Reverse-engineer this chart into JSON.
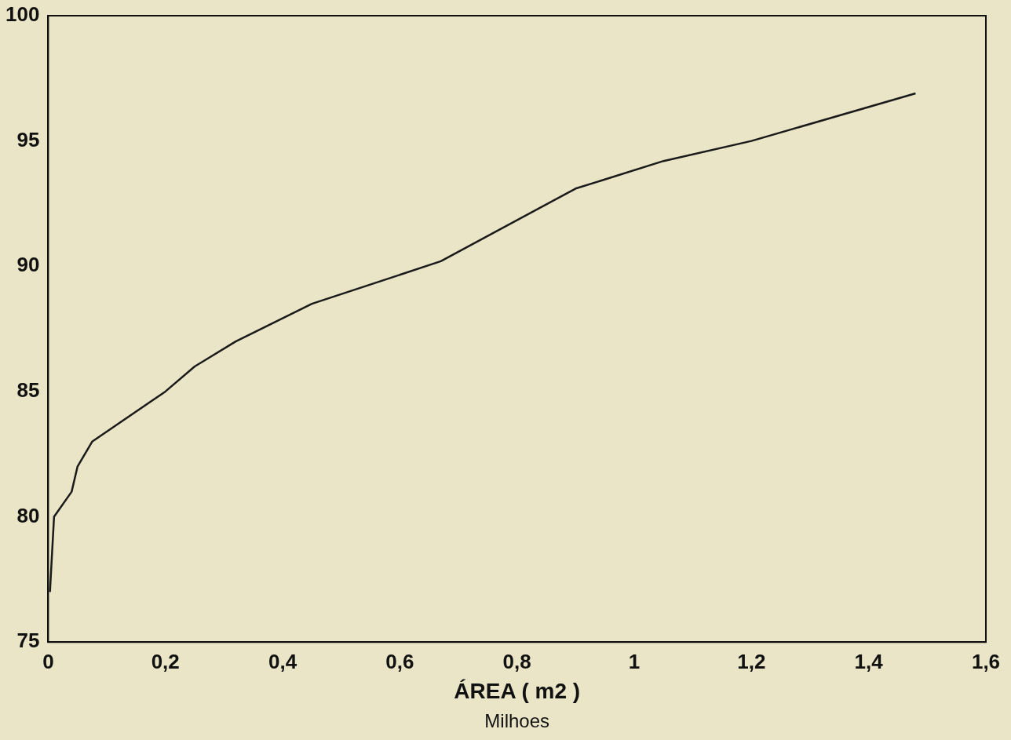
{
  "chart_data": {
    "type": "line",
    "xlabel": "ÁREA ( m2 )",
    "annotations": [
      "Milhoes"
    ],
    "x": [
      0.003,
      0.01,
      0.04,
      0.05,
      0.075,
      0.2,
      0.25,
      0.32,
      0.45,
      0.67,
      0.9,
      1.05,
      1.2,
      1.48
    ],
    "series": [
      {
        "color": "#1a1a1a",
        "values": [
          77,
          80,
          81,
          82,
          83,
          85,
          86,
          87,
          88.5,
          90.2,
          93.1,
          94.2,
          95,
          96.9
        ]
      }
    ],
    "xlim": [
      0,
      1.6
    ],
    "xticks": [
      0,
      {
        "value": 0.2,
        "label": "0,2"
      },
      {
        "value": 0.4,
        "label": "0,4"
      },
      {
        "value": 0.6,
        "label": "0,6"
      },
      {
        "value": 0.8,
        "label": "0,8"
      },
      1,
      {
        "value": 1.2,
        "label": "1,2"
      },
      {
        "value": 1.4,
        "label": "1,4"
      },
      {
        "value": 1.6,
        "label": "1,6"
      }
    ],
    "ylim": [
      75,
      100
    ],
    "yticks": [
      75,
      80,
      85,
      90,
      95,
      100
    ],
    "grid": false,
    "legend": false,
    "marker": "none",
    "line_style": "solid"
  }
}
